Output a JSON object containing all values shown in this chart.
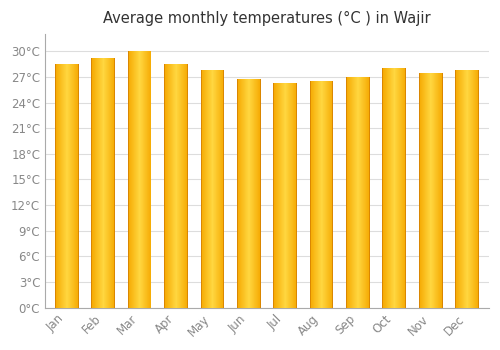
{
  "title": "Average monthly temperatures (°C ) in Wajir",
  "months": [
    "Jan",
    "Feb",
    "Mar",
    "Apr",
    "May",
    "Jun",
    "Jul",
    "Aug",
    "Sep",
    "Oct",
    "Nov",
    "Dec"
  ],
  "temperatures": [
    28.5,
    29.2,
    30.0,
    28.5,
    27.8,
    26.8,
    26.3,
    26.5,
    27.0,
    28.0,
    27.5,
    27.8
  ],
  "bar_color_light": "#FFD740",
  "bar_color_dark": "#F5A800",
  "bar_border_color": "#C87000",
  "ylim": [
    0,
    32
  ],
  "ytick_step": 3,
  "background_color": "#FFFFFF",
  "plot_bg_color": "#FFFFFF",
  "grid_color": "#DDDDDD",
  "title_fontsize": 10.5,
  "tick_fontsize": 8.5,
  "tick_color": "#888888",
  "font_family": "DejaVu Sans"
}
